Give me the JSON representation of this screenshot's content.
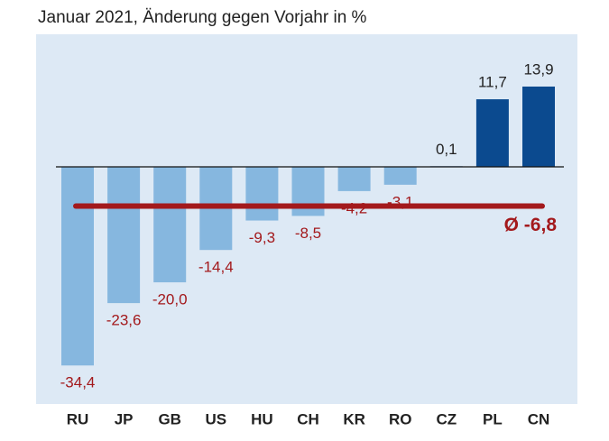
{
  "chart_data": {
    "type": "bar",
    "title": "Januar 2021, Änderung gegen Vorjahr in %",
    "categories": [
      "RU",
      "JP",
      "GB",
      "US",
      "HU",
      "CH",
      "KR",
      "RO",
      "CZ",
      "PL",
      "CN"
    ],
    "values": [
      -34.4,
      -23.6,
      -20.0,
      -14.4,
      -9.3,
      -8.5,
      -4.2,
      -3.1,
      0.1,
      11.7,
      13.9
    ],
    "value_labels": [
      "-34,4",
      "-23,6",
      "-20,0",
      "-14,4",
      "-9,3",
      "-8,5",
      "-4,2",
      "-3,1",
      "0,1",
      "11,7",
      "13,9"
    ],
    "negative_color": "#86b7df",
    "positive_color": "#0b4a8f",
    "average": -6.8,
    "average_label": "Ø -6,8",
    "average_color": "#a3191c"
  }
}
